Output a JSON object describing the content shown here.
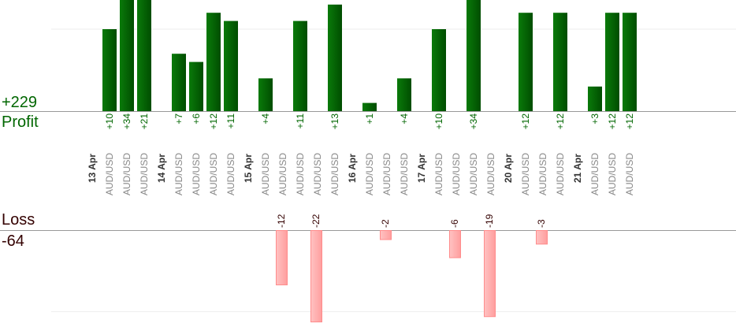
{
  "profit_label": "Profit",
  "profit_total": "+229",
  "loss_label": "Loss",
  "loss_total": "-64",
  "colors": {
    "profit_bar": "#006600",
    "profit_text": "#006600",
    "loss_bar": "#ffb3b3",
    "loss_text": "#330000",
    "date_text": "#333333",
    "pair_text": "#888888"
  },
  "chart_data": {
    "type": "bar",
    "series": [
      {
        "name": "Profit"
      },
      {
        "name": "Loss"
      }
    ],
    "groups": [
      {
        "date": "13 Apr",
        "trades": [
          {
            "pair": "AUD/USD",
            "profit": 10
          },
          {
            "pair": "AUD/USD",
            "profit": 34
          },
          {
            "pair": "AUD/USD",
            "profit": 21
          }
        ]
      },
      {
        "date": "14 Apr",
        "trades": [
          {
            "pair": "AUD/USD",
            "profit": 7
          },
          {
            "pair": "AUD/USD",
            "profit": 6
          },
          {
            "pair": "AUD/USD",
            "profit": 12
          },
          {
            "pair": "AUD/USD",
            "profit": 11
          }
        ]
      },
      {
        "date": "15 Apr",
        "trades": [
          {
            "pair": "AUD/USD",
            "profit": 4
          },
          {
            "pair": "AUD/USD",
            "loss": -12
          },
          {
            "pair": "AUD/USD",
            "profit": 11
          },
          {
            "pair": "AUD/USD",
            "loss": -22
          },
          {
            "pair": "AUD/USD",
            "profit": 13
          }
        ]
      },
      {
        "date": "16 Apr",
        "trades": [
          {
            "pair": "AUD/USD",
            "profit": 1
          },
          {
            "pair": "AUD/USD",
            "loss": -2
          },
          {
            "pair": "AUD/USD",
            "profit": 4
          }
        ]
      },
      {
        "date": "17 Apr",
        "trades": [
          {
            "pair": "AUD/USD",
            "profit": 10
          },
          {
            "pair": "AUD/USD",
            "loss": -6
          },
          {
            "pair": "AUD/USD",
            "profit": 34
          },
          {
            "pair": "AUD/USD",
            "loss": -19
          }
        ]
      },
      {
        "date": "20 Apr",
        "trades": [
          {
            "pair": "AUD/USD",
            "profit": 12
          },
          {
            "pair": "AUD/USD",
            "loss": -3
          },
          {
            "pair": "AUD/USD",
            "profit": 12
          }
        ]
      },
      {
        "date": "21 Apr",
        "trades": [
          {
            "pair": "AUD/USD",
            "profit": 3
          },
          {
            "pair": "AUD/USD",
            "profit": 12
          },
          {
            "pair": "AUD/USD",
            "profit": 12
          }
        ]
      }
    ],
    "profit_axis": {
      "min": 0,
      "max": 12,
      "gridlines": [
        10
      ],
      "clipped_above_max": true
    },
    "loss_axis": {
      "min": -20,
      "max": 0,
      "gridlines": [
        -18
      ],
      "clipped_below_min": true
    },
    "grid": true,
    "legend": "none"
  }
}
